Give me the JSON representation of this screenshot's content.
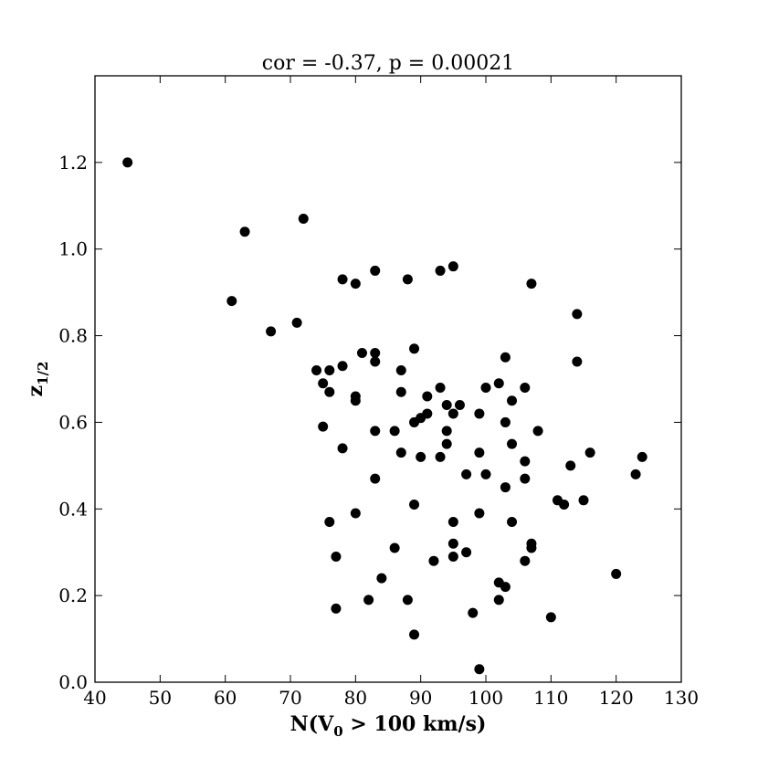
{
  "chart_data": {
    "type": "scatter",
    "title": "cor = -0.37, p = 0.00021",
    "xlabel": "N(V",
    "xlabel_sub": "0",
    "xlabel_rest": " > 100 km/s)",
    "ylabel": "z",
    "ylabel_sub": "1/2",
    "xlim": [
      40,
      130
    ],
    "ylim": [
      0.0,
      1.4
    ],
    "xticks": [
      "40",
      "50",
      "60",
      "70",
      "80",
      "90",
      "100",
      "110",
      "120",
      "130"
    ],
    "xtick_values": [
      40,
      50,
      60,
      70,
      80,
      90,
      100,
      110,
      120,
      130
    ],
    "yticks": [
      "0.0",
      "0.2",
      "0.4",
      "0.6",
      "0.8",
      "1.0",
      "1.2"
    ],
    "ytick_values": [
      0.0,
      0.2,
      0.4,
      0.6,
      0.8,
      1.0,
      1.2
    ],
    "grid": false,
    "marker_color": "#000000",
    "points": [
      [
        45,
        1.2
      ],
      [
        63,
        1.04
      ],
      [
        72,
        1.07
      ],
      [
        61,
        0.88
      ],
      [
        67,
        0.81
      ],
      [
        71,
        0.83
      ],
      [
        78,
        0.93
      ],
      [
        80,
        0.92
      ],
      [
        83,
        0.95
      ],
      [
        88,
        0.93
      ],
      [
        93,
        0.95
      ],
      [
        95,
        0.96
      ],
      [
        107,
        0.92
      ],
      [
        114,
        0.85
      ],
      [
        114,
        0.74
      ],
      [
        81,
        0.76
      ],
      [
        83,
        0.76
      ],
      [
        89,
        0.77
      ],
      [
        74,
        0.72
      ],
      [
        76,
        0.72
      ],
      [
        78,
        0.73
      ],
      [
        83,
        0.74
      ],
      [
        87,
        0.72
      ],
      [
        75,
        0.69
      ],
      [
        76,
        0.67
      ],
      [
        87,
        0.67
      ],
      [
        80,
        0.66
      ],
      [
        80,
        0.65
      ],
      [
        91,
        0.66
      ],
      [
        93,
        0.68
      ],
      [
        94,
        0.64
      ],
      [
        96,
        0.64
      ],
      [
        100,
        0.68
      ],
      [
        102,
        0.69
      ],
      [
        103,
        0.75
      ],
      [
        104,
        0.65
      ],
      [
        106,
        0.68
      ],
      [
        95,
        0.62
      ],
      [
        99,
        0.62
      ],
      [
        91,
        0.62
      ],
      [
        90,
        0.61
      ],
      [
        89,
        0.6
      ],
      [
        75,
        0.59
      ],
      [
        83,
        0.58
      ],
      [
        86,
        0.58
      ],
      [
        94,
        0.58
      ],
      [
        103,
        0.6
      ],
      [
        108,
        0.58
      ],
      [
        78,
        0.54
      ],
      [
        87,
        0.53
      ],
      [
        90,
        0.52
      ],
      [
        93,
        0.52
      ],
      [
        94,
        0.55
      ],
      [
        99,
        0.53
      ],
      [
        104,
        0.55
      ],
      [
        106,
        0.51
      ],
      [
        113,
        0.5
      ],
      [
        116,
        0.53
      ],
      [
        123,
        0.48
      ],
      [
        124,
        0.52
      ],
      [
        83,
        0.47
      ],
      [
        97,
        0.48
      ],
      [
        100,
        0.48
      ],
      [
        103,
        0.45
      ],
      [
        106,
        0.47
      ],
      [
        111,
        0.42
      ],
      [
        112,
        0.41
      ],
      [
        115,
        0.42
      ],
      [
        89,
        0.41
      ],
      [
        99,
        0.39
      ],
      [
        80,
        0.39
      ],
      [
        76,
        0.37
      ],
      [
        95,
        0.37
      ],
      [
        104,
        0.37
      ],
      [
        77,
        0.29
      ],
      [
        86,
        0.31
      ],
      [
        92,
        0.28
      ],
      [
        95,
        0.32
      ],
      [
        95,
        0.29
      ],
      [
        97,
        0.3
      ],
      [
        106,
        0.28
      ],
      [
        107,
        0.32
      ],
      [
        107,
        0.31
      ],
      [
        84,
        0.24
      ],
      [
        82,
        0.19
      ],
      [
        88,
        0.19
      ],
      [
        77,
        0.17
      ],
      [
        98,
        0.16
      ],
      [
        102,
        0.23
      ],
      [
        103,
        0.22
      ],
      [
        102,
        0.19
      ],
      [
        89,
        0.11
      ],
      [
        110,
        0.15
      ],
      [
        120,
        0.25
      ],
      [
        99,
        0.03
      ]
    ]
  }
}
